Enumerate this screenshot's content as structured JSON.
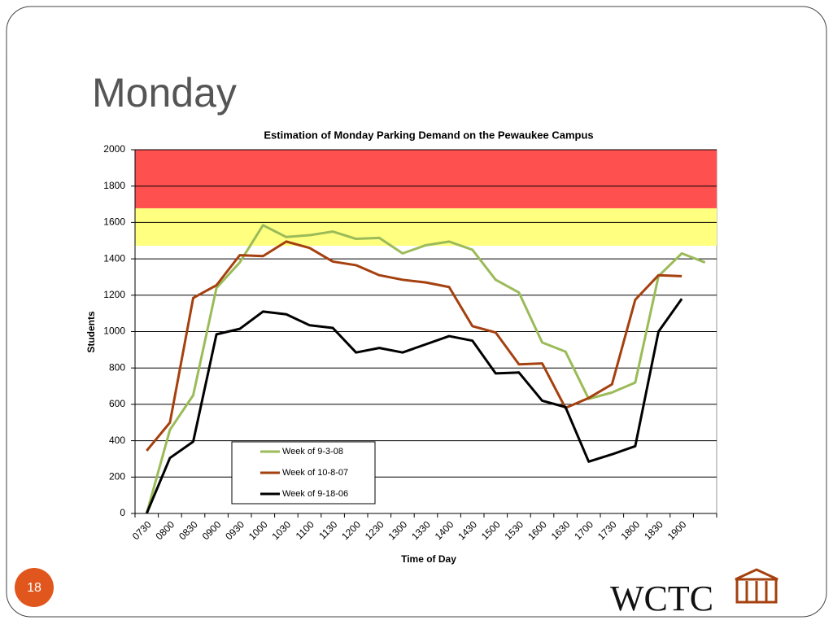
{
  "slide": {
    "title": "Monday",
    "number": "18",
    "logo": "WCTC"
  },
  "chart_data": {
    "type": "line",
    "title": "Estimation of Monday Parking Demand on the Pewaukee Campus",
    "x_label": "Time of Day",
    "y_label": "Students",
    "categories": [
      "0730",
      "0800",
      "0830",
      "0900",
      "0930",
      "1000",
      "1030",
      "1100",
      "1130",
      "1200",
      "1230",
      "1300",
      "1330",
      "1400",
      "1430",
      "1500",
      "1530",
      "1600",
      "1630",
      "1700",
      "1730",
      "1800",
      "1830",
      "1900",
      null
    ],
    "series": [
      {
        "name": "Week of 9-3-08",
        "color": "#9bbb59",
        "values": [
          0,
          460,
          650,
          1240,
          1380,
          1585,
          1520,
          1530,
          1550,
          1510,
          1515,
          1430,
          1475,
          1495,
          1450,
          1285,
          1215,
          940,
          890,
          630,
          665,
          720,
          1305,
          1430,
          1380
        ]
      },
      {
        "name": "Week of 10-8-07",
        "color": "#a5400f",
        "values": [
          345,
          500,
          1185,
          1255,
          1420,
          1415,
          1495,
          1460,
          1385,
          1365,
          1310,
          1285,
          1270,
          1245,
          1030,
          995,
          820,
          825,
          580,
          635,
          710,
          1175,
          1310,
          1305,
          null
        ]
      },
      {
        "name": "Week of 9-18-06",
        "color": "#000000",
        "values": [
          0,
          305,
          395,
          985,
          1015,
          1110,
          1095,
          1035,
          1020,
          885,
          910,
          885,
          930,
          975,
          950,
          770,
          775,
          620,
          585,
          285,
          325,
          370,
          1000,
          1180,
          null
        ]
      }
    ],
    "bands": [
      {
        "from": 1678,
        "to": 2000,
        "color": "#ff5050"
      },
      {
        "from": 1472,
        "to": 1678,
        "color": "#ffff80"
      }
    ],
    "ylim": [
      0,
      2000
    ],
    "yticks": [
      0,
      200,
      400,
      600,
      800,
      1000,
      1200,
      1400,
      1600,
      1800,
      2000
    ],
    "grid": true
  }
}
